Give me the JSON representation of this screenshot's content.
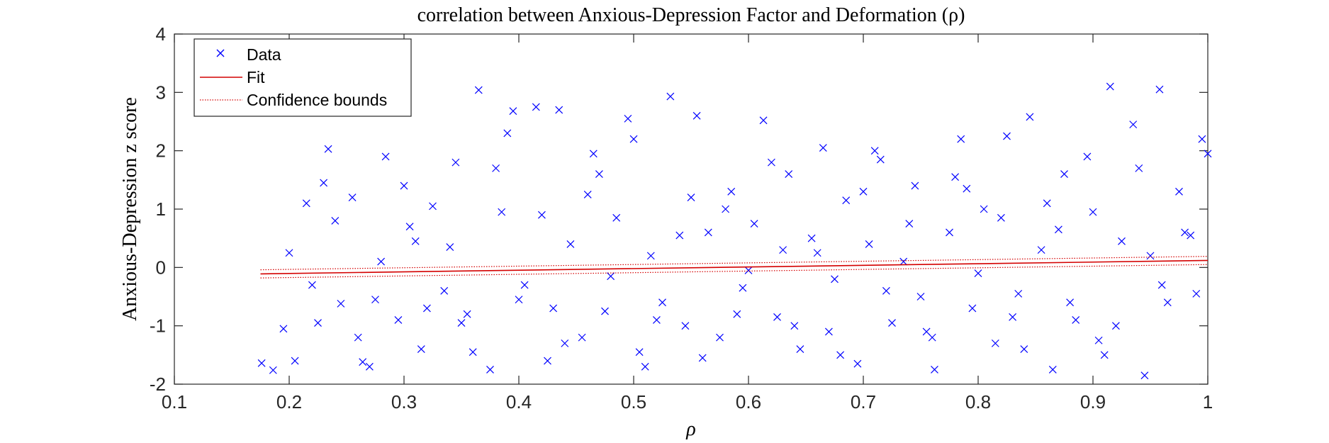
{
  "chart_data": {
    "type": "scatter",
    "title": "correlation between Anxious-Depression Factor and Deformation (ρ)",
    "xlabel": "ρ",
    "ylabel": "Anxious-Depression z score",
    "xlim": [
      0.1,
      1.0
    ],
    "ylim": [
      -2,
      4
    ],
    "xticks": [
      0.1,
      0.2,
      0.3,
      0.4,
      0.5,
      0.6,
      0.7,
      0.8,
      0.9,
      1.0
    ],
    "xtick_labels": [
      "0.1",
      "0.2",
      "0.3",
      "0.4",
      "0.5",
      "0.6",
      "0.7",
      "0.8",
      "0.9",
      "1"
    ],
    "yticks": [
      -2,
      -1,
      0,
      1,
      2,
      3,
      4
    ],
    "ytick_labels": [
      "-2",
      "-1",
      "0",
      "1",
      "2",
      "3",
      "4"
    ],
    "grid": false,
    "legend_position": "top-left",
    "legend": [
      {
        "label": "Data",
        "style": "x-marker",
        "color": "#0000ff"
      },
      {
        "label": "Fit",
        "style": "solid-line",
        "color": "#d40000"
      },
      {
        "label": "Confidence bounds",
        "style": "dotted-line",
        "color": "#d40000"
      }
    ],
    "fit": {
      "name": "Fit",
      "x": [
        0.175,
        1.0
      ],
      "y": [
        -0.11,
        0.12
      ]
    },
    "confidence_bounds": {
      "name": "Confidence bounds",
      "x": [
        0.175,
        1.0
      ],
      "upper": [
        -0.04,
        0.19
      ],
      "lower": [
        -0.18,
        0.05
      ]
    },
    "series": [
      {
        "name": "Data",
        "color": "#0000ff",
        "points": [
          [
            0.176,
            -1.64
          ],
          [
            0.186,
            -1.76
          ],
          [
            0.195,
            -1.05
          ],
          [
            0.205,
            -1.6
          ],
          [
            0.215,
            1.1
          ],
          [
            0.225,
            -0.95
          ],
          [
            0.234,
            2.03
          ],
          [
            0.245,
            -0.62
          ],
          [
            0.255,
            1.2
          ],
          [
            0.264,
            -1.62
          ],
          [
            0.275,
            -0.55
          ],
          [
            0.284,
            1.9
          ],
          [
            0.295,
            -0.9
          ],
          [
            0.305,
            0.7
          ],
          [
            0.315,
            -1.4
          ],
          [
            0.325,
            1.05
          ],
          [
            0.335,
            -0.4
          ],
          [
            0.345,
            1.8
          ],
          [
            0.355,
            -0.8
          ],
          [
            0.365,
            3.04
          ],
          [
            0.375,
            -1.75
          ],
          [
            0.385,
            0.95
          ],
          [
            0.395,
            2.68
          ],
          [
            0.405,
            -0.3
          ],
          [
            0.415,
            2.75
          ],
          [
            0.425,
            -1.6
          ],
          [
            0.435,
            2.7
          ],
          [
            0.445,
            0.4
          ],
          [
            0.455,
            -1.2
          ],
          [
            0.465,
            1.95
          ],
          [
            0.475,
            -0.75
          ],
          [
            0.485,
            0.85
          ],
          [
            0.495,
            2.55
          ],
          [
            0.505,
            -1.45
          ],
          [
            0.515,
            0.2
          ],
          [
            0.525,
            -0.6
          ],
          [
            0.532,
            2.93
          ],
          [
            0.545,
            -1.0
          ],
          [
            0.555,
            2.6
          ],
          [
            0.565,
            0.6
          ],
          [
            0.575,
            -1.2
          ],
          [
            0.585,
            1.3
          ],
          [
            0.595,
            -0.35
          ],
          [
            0.605,
            0.75
          ],
          [
            0.613,
            2.52
          ],
          [
            0.625,
            -0.85
          ],
          [
            0.635,
            1.6
          ],
          [
            0.645,
            -1.4
          ],
          [
            0.655,
            0.5
          ],
          [
            0.665,
            2.05
          ],
          [
            0.675,
            -0.2
          ],
          [
            0.685,
            1.15
          ],
          [
            0.695,
            -1.65
          ],
          [
            0.705,
            0.4
          ],
          [
            0.715,
            1.85
          ],
          [
            0.725,
            -0.95
          ],
          [
            0.735,
            0.1
          ],
          [
            0.745,
            1.4
          ],
          [
            0.755,
            -1.1
          ],
          [
            0.762,
            -1.75
          ],
          [
            0.775,
            0.6
          ],
          [
            0.785,
            2.2
          ],
          [
            0.795,
            -0.7
          ],
          [
            0.805,
            1.0
          ],
          [
            0.815,
            -1.3
          ],
          [
            0.825,
            2.25
          ],
          [
            0.835,
            -0.45
          ],
          [
            0.845,
            2.58
          ],
          [
            0.855,
            0.3
          ],
          [
            0.865,
            -1.75
          ],
          [
            0.875,
            1.6
          ],
          [
            0.885,
            -0.9
          ],
          [
            0.895,
            1.9
          ],
          [
            0.905,
            -1.25
          ],
          [
            0.915,
            3.1
          ],
          [
            0.925,
            0.45
          ],
          [
            0.935,
            2.45
          ],
          [
            0.945,
            -1.85
          ],
          [
            0.958,
            3.05
          ],
          [
            0.965,
            -0.6
          ],
          [
            0.975,
            1.3
          ],
          [
            0.985,
            0.55
          ],
          [
            0.995,
            2.2
          ],
          [
            1.0,
            1.95
          ],
          [
            0.2,
            0.25
          ],
          [
            0.22,
            -0.3
          ],
          [
            0.24,
            0.8
          ],
          [
            0.26,
            -1.2
          ],
          [
            0.28,
            0.1
          ],
          [
            0.3,
            1.4
          ],
          [
            0.32,
            -0.7
          ],
          [
            0.34,
            0.35
          ],
          [
            0.36,
            -1.45
          ],
          [
            0.38,
            1.7
          ],
          [
            0.4,
            -0.55
          ],
          [
            0.42,
            0.9
          ],
          [
            0.44,
            -1.3
          ],
          [
            0.46,
            1.25
          ],
          [
            0.48,
            -0.15
          ],
          [
            0.5,
            2.2
          ],
          [
            0.52,
            -0.9
          ],
          [
            0.54,
            0.55
          ],
          [
            0.56,
            -1.55
          ],
          [
            0.58,
            1.0
          ],
          [
            0.6,
            -0.05
          ],
          [
            0.62,
            1.8
          ],
          [
            0.64,
            -1.0
          ],
          [
            0.66,
            0.25
          ],
          [
            0.68,
            -1.5
          ],
          [
            0.7,
            1.3
          ],
          [
            0.72,
            -0.4
          ],
          [
            0.74,
            0.75
          ],
          [
            0.76,
            -1.2
          ],
          [
            0.78,
            1.55
          ],
          [
            0.8,
            -0.1
          ],
          [
            0.82,
            0.85
          ],
          [
            0.84,
            -1.4
          ],
          [
            0.86,
            1.1
          ],
          [
            0.88,
            -0.6
          ],
          [
            0.9,
            0.95
          ],
          [
            0.92,
            -1.0
          ],
          [
            0.94,
            1.7
          ],
          [
            0.96,
            -0.3
          ],
          [
            0.98,
            0.6
          ],
          [
            0.23,
            1.45
          ],
          [
            0.27,
            -1.7
          ],
          [
            0.31,
            0.45
          ],
          [
            0.35,
            -0.95
          ],
          [
            0.39,
            2.3
          ],
          [
            0.43,
            -0.7
          ],
          [
            0.47,
            1.6
          ],
          [
            0.51,
            -1.7
          ],
          [
            0.55,
            1.2
          ],
          [
            0.59,
            -0.8
          ],
          [
            0.63,
            0.3
          ],
          [
            0.67,
            -1.1
          ],
          [
            0.71,
            2.0
          ],
          [
            0.75,
            -0.5
          ],
          [
            0.79,
            1.35
          ],
          [
            0.83,
            -0.85
          ],
          [
            0.87,
            0.65
          ],
          [
            0.91,
            -1.5
          ],
          [
            0.95,
            0.2
          ],
          [
            0.99,
            -0.45
          ]
        ]
      }
    ]
  }
}
